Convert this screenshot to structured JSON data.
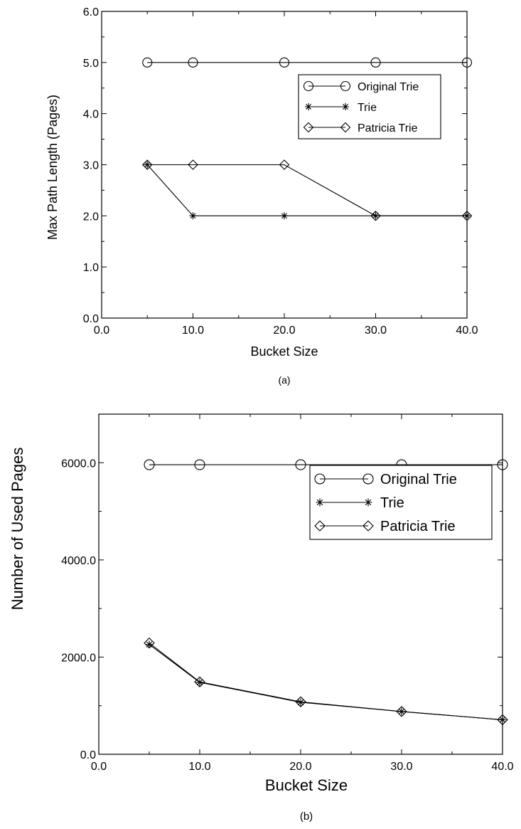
{
  "chart_data": [
    {
      "type": "line",
      "panel_label": "(a)",
      "xlabel": "Bucket Size",
      "ylabel": "Max Path Length (Pages)",
      "xlim": [
        0,
        40
      ],
      "ylim": [
        0,
        6
      ],
      "x_ticks": [
        "0.0",
        "10.0",
        "20.0",
        "30.0",
        "40.0"
      ],
      "y_ticks": [
        "0.0",
        "1.0",
        "2.0",
        "3.0",
        "4.0",
        "5.0",
        "6.0"
      ],
      "grid": false,
      "legend_position": "upper-right",
      "x": [
        5,
        10,
        20,
        30,
        40
      ],
      "series": [
        {
          "name": "Original Trie",
          "marker": "circle",
          "values": [
            5,
            5,
            5,
            5,
            5
          ]
        },
        {
          "name": "Trie",
          "marker": "asterisk",
          "values": [
            3,
            2,
            2,
            2,
            2
          ]
        },
        {
          "name": "Patricia Trie",
          "marker": "diamond",
          "values": [
            3,
            3,
            3,
            2,
            2
          ]
        }
      ]
    },
    {
      "type": "line",
      "panel_label": "(b)",
      "xlabel": "Bucket Size",
      "ylabel": "Number of Used Pages",
      "xlim": [
        0,
        40
      ],
      "ylim": [
        0,
        7000
      ],
      "x_ticks": [
        "0.0",
        "10.0",
        "20.0",
        "30.0",
        "40.0"
      ],
      "y_ticks": [
        "0.0",
        "2000.0",
        "4000.0",
        "6000.0"
      ],
      "grid": false,
      "legend_position": "upper-right",
      "x": [
        5,
        10,
        20,
        30,
        40
      ],
      "series": [
        {
          "name": "Original Trie",
          "marker": "circle",
          "values": [
            5960,
            5960,
            5960,
            5960,
            5960
          ]
        },
        {
          "name": "Trie",
          "marker": "asterisk",
          "values": [
            2260,
            1480,
            1070,
            880,
            710
          ]
        },
        {
          "name": "Patricia Trie",
          "marker": "diamond",
          "values": [
            2290,
            1490,
            1080,
            880,
            710
          ]
        }
      ]
    }
  ]
}
